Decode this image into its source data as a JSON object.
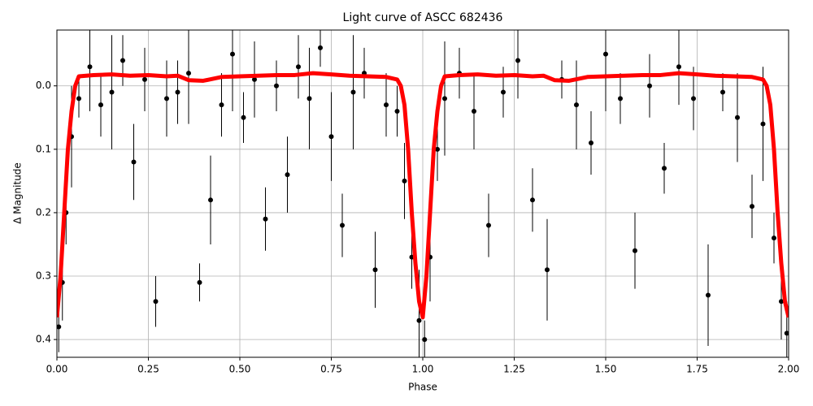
{
  "chart_data": {
    "type": "scatter",
    "title": "Light curve of ASCC 682436",
    "x_label": "Phase",
    "y_label": "Δ Magnitude",
    "xlim": [
      0,
      2
    ],
    "ylim": [
      -0.088,
      0.428
    ],
    "y_inverted": true,
    "grid": true,
    "xticks": [
      {
        "value": 0,
        "label": "0.00"
      },
      {
        "value": 0.25,
        "label": "0.25"
      },
      {
        "value": 0.5,
        "label": "0.50"
      },
      {
        "value": 0.75,
        "label": "0.75"
      },
      {
        "value": 1,
        "label": "1.00"
      },
      {
        "value": 1.25,
        "label": "1.25"
      },
      {
        "value": 1.5,
        "label": "1.50"
      },
      {
        "value": 1.75,
        "label": "1.75"
      },
      {
        "value": 2,
        "label": "2.00"
      }
    ],
    "yticks": [
      {
        "value": 0,
        "label": "0.0"
      },
      0.1,
      0.2,
      0.3,
      0.4
    ],
    "points": {
      "color": "#000000",
      "x": [
        0.005,
        0.015,
        0.025,
        0.04,
        0.06,
        0.09,
        0.12,
        0.15,
        0.18,
        0.21,
        0.24,
        0.27,
        0.3,
        0.33,
        0.36,
        0.39,
        0.42,
        0.45,
        0.48,
        0.51,
        0.54,
        0.57,
        0.6,
        0.63,
        0.66,
        0.69,
        0.72,
        0.75,
        0.78,
        0.81,
        0.84,
        0.87,
        0.9,
        0.93,
        0.95,
        0.97,
        0.99,
        1.005,
        1.02,
        1.04,
        1.06,
        1.1,
        1.14,
        1.18,
        1.22,
        1.26,
        1.3,
        1.34,
        1.38,
        1.42,
        1.46,
        1.5,
        1.54,
        1.58,
        1.62,
        1.66,
        1.7,
        1.74,
        1.78,
        1.82,
        1.86,
        1.9,
        1.93,
        1.96,
        1.98,
        1.995
      ],
      "values": [
        0.38,
        0.31,
        0.2,
        0.08,
        0.02,
        -0.03,
        0.03,
        0.01,
        -0.04,
        0.12,
        -0.01,
        0.34,
        0.02,
        0.01,
        -0.02,
        0.31,
        0.18,
        0.03,
        -0.05,
        0.05,
        -0.01,
        0.21,
        0.0,
        0.14,
        -0.03,
        0.02,
        -0.06,
        0.08,
        0.22,
        0.01,
        -0.02,
        0.29,
        0.03,
        0.04,
        0.15,
        0.27,
        0.37,
        0.4,
        0.27,
        0.1,
        0.02,
        -0.02,
        0.04,
        0.22,
        0.01,
        -0.04,
        0.18,
        0.29,
        -0.01,
        0.03,
        0.09,
        -0.05,
        0.02,
        0.26,
        0.0,
        0.13,
        -0.03,
        0.02,
        0.33,
        0.01,
        0.05,
        0.19,
        0.06,
        0.24,
        0.34,
        0.39
      ],
      "errors": [
        0.04,
        0.06,
        0.05,
        0.08,
        0.03,
        0.07,
        0.05,
        0.09,
        0.04,
        0.06,
        0.05,
        0.04,
        0.06,
        0.05,
        0.08,
        0.03,
        0.07,
        0.05,
        0.09,
        0.04,
        0.06,
        0.05,
        0.04,
        0.06,
        0.05,
        0.08,
        0.03,
        0.07,
        0.05,
        0.09,
        0.04,
        0.06,
        0.05,
        0.04,
        0.06,
        0.05,
        0.08,
        0.03,
        0.07,
        0.05,
        0.09,
        0.04,
        0.06,
        0.05,
        0.04,
        0.06,
        0.05,
        0.08,
        0.03,
        0.07,
        0.05,
        0.09,
        0.04,
        0.06,
        0.05,
        0.04,
        0.06,
        0.05,
        0.08,
        0.03,
        0.07,
        0.05,
        0.09,
        0.04,
        0.06,
        0.05
      ]
    },
    "model": {
      "color": "#ff0000",
      "x": [
        0,
        0.01,
        0.02,
        0.03,
        0.04,
        0.05,
        0.06,
        0.1,
        0.15,
        0.2,
        0.25,
        0.3,
        0.33,
        0.36,
        0.4,
        0.45,
        0.5,
        0.55,
        0.6,
        0.65,
        0.7,
        0.75,
        0.8,
        0.85,
        0.9,
        0.93,
        0.94,
        0.95,
        0.96,
        0.97,
        0.98,
        0.99,
        1.0,
        1.01,
        1.02,
        1.03,
        1.04,
        1.05,
        1.06,
        1.1,
        1.15,
        1.2,
        1.25,
        1.3,
        1.33,
        1.36,
        1.4,
        1.45,
        1.5,
        1.55,
        1.6,
        1.65,
        1.7,
        1.75,
        1.8,
        1.85,
        1.9,
        1.93,
        1.94,
        1.95,
        1.96,
        1.97,
        1.98,
        1.99,
        2.0
      ],
      "values": [
        0.365,
        0.3,
        0.2,
        0.1,
        0.04,
        0.0,
        -0.015,
        -0.017,
        -0.018,
        -0.016,
        -0.017,
        -0.015,
        -0.016,
        -0.009,
        -0.008,
        -0.014,
        -0.015,
        -0.016,
        -0.017,
        -0.017,
        -0.02,
        -0.018,
        -0.016,
        -0.015,
        -0.014,
        -0.01,
        0.0,
        0.03,
        0.1,
        0.2,
        0.28,
        0.34,
        0.365,
        0.3,
        0.2,
        0.1,
        0.04,
        0.0,
        -0.015,
        -0.017,
        -0.018,
        -0.016,
        -0.017,
        -0.015,
        -0.016,
        -0.009,
        -0.008,
        -0.014,
        -0.015,
        -0.016,
        -0.017,
        -0.017,
        -0.02,
        -0.018,
        -0.016,
        -0.015,
        -0.014,
        -0.01,
        0.0,
        0.03,
        0.1,
        0.2,
        0.28,
        0.34,
        0.365
      ]
    }
  }
}
